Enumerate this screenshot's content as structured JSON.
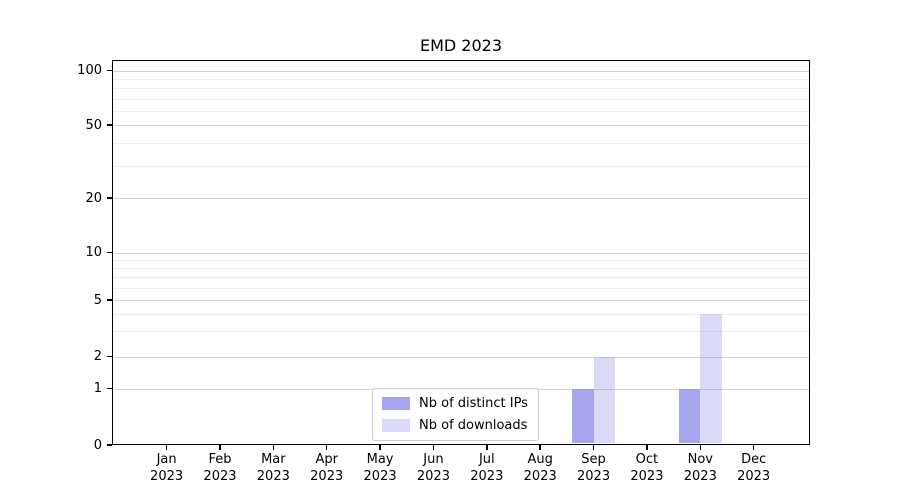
{
  "chart_data": {
    "type": "bar",
    "title": "EMD 2023",
    "xlabel": "",
    "ylabel": "",
    "categories": [
      "Jan 2023",
      "Feb 2023",
      "Mar 2023",
      "Apr 2023",
      "May 2023",
      "Jun 2023",
      "Jul 2023",
      "Aug 2023",
      "Sep 2023",
      "Oct 2023",
      "Nov 2023",
      "Dec 2023"
    ],
    "series": [
      {
        "name": "Nb of distinct IPs",
        "color": "#a6a6ee",
        "values": [
          0,
          0,
          0,
          0,
          0,
          0,
          0,
          0,
          1,
          0,
          1,
          0
        ]
      },
      {
        "name": "Nb of downloads",
        "color": "#dadaf8",
        "values": [
          0,
          0,
          0,
          0,
          0,
          0,
          0,
          0,
          2,
          0,
          4,
          0
        ]
      }
    ],
    "yscale": "symlog",
    "ylim": [
      0,
      113
    ],
    "yticks": [
      0,
      1,
      2,
      5,
      10,
      20,
      50,
      100
    ],
    "yminor": [
      3,
      4,
      6,
      7,
      8,
      9,
      30,
      40,
      60,
      70,
      80,
      90
    ],
    "grid": true,
    "legend_position": "inside-bottom-center",
    "colors": {
      "bar_distinct_ips": "#a6a6ee",
      "bar_downloads": "#dadaf8",
      "major_grid": "#cccccc",
      "minor_grid": "#ececec",
      "axis": "#000000",
      "legend_border": "#cccccc"
    }
  }
}
